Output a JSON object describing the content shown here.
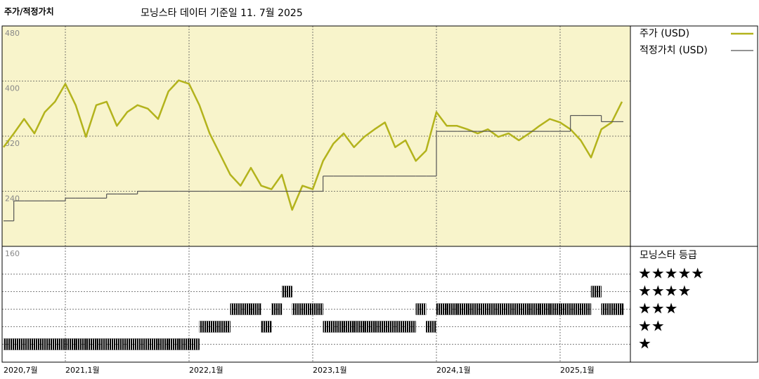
{
  "chart_data": [
    {
      "type": "line",
      "title": "주가/적정가치",
      "subtitle": "모닝스타 데이터 기준일 11. 7월 2025",
      "x": [
        "2020-07",
        "2020-08",
        "2020-09",
        "2020-10",
        "2020-11",
        "2020-12",
        "2021-01",
        "2021-02",
        "2021-03",
        "2021-04",
        "2021-05",
        "2021-06",
        "2021-07",
        "2021-08",
        "2021-09",
        "2021-10",
        "2021-11",
        "2021-12",
        "2022-01",
        "2022-02",
        "2022-03",
        "2022-04",
        "2022-05",
        "2022-06",
        "2022-07",
        "2022-08",
        "2022-09",
        "2022-10",
        "2022-11",
        "2022-12",
        "2023-01",
        "2023-02",
        "2023-03",
        "2023-04",
        "2023-05",
        "2023-06",
        "2023-07",
        "2023-08",
        "2023-09",
        "2023-10",
        "2023-11",
        "2023-12",
        "2024-01",
        "2024-02",
        "2024-03",
        "2024-04",
        "2024-05",
        "2024-06",
        "2024-07",
        "2024-08",
        "2024-09",
        "2024-10",
        "2024-11",
        "2024-12",
        "2025-01",
        "2025-02",
        "2025-03",
        "2025-04",
        "2025-05",
        "2025-06",
        "2025-07"
      ],
      "series": [
        {
          "name": "주가 (USD)",
          "color": "#b3b31c",
          "values": [
            304,
            324,
            345,
            324,
            355,
            370,
            396,
            365,
            319,
            365,
            370,
            335,
            355,
            365,
            360,
            345,
            385,
            401,
            396,
            365,
            324,
            294,
            264,
            248,
            274,
            248,
            243,
            264,
            213,
            248,
            243,
            284,
            309,
            324,
            304,
            319,
            330,
            340,
            304,
            314,
            284,
            299,
            355,
            335,
            335,
            330,
            324,
            330,
            319,
            324,
            314,
            324,
            335,
            345,
            340,
            330,
            314,
            289,
            330,
            340,
            370
          ]
        },
        {
          "name": "적정가치 (USD)",
          "color": "#555555",
          "step": true,
          "values": [
            197,
            226,
            226,
            226,
            226,
            226,
            230,
            230,
            230,
            230,
            236,
            236,
            236,
            240,
            240,
            240,
            240,
            240,
            240,
            240,
            240,
            240,
            240,
            240,
            240,
            240,
            240,
            240,
            240,
            240,
            240,
            262,
            262,
            262,
            262,
            262,
            262,
            262,
            262,
            262,
            262,
            262,
            327,
            327,
            327,
            327,
            327,
            327,
            327,
            327,
            327,
            327,
            327,
            327,
            327,
            350,
            350,
            350,
            341,
            341,
            341
          ]
        }
      ],
      "ylim": [
        160,
        480
      ],
      "yticks": [
        160,
        240,
        320,
        400,
        480
      ],
      "xticks": [
        {
          "value": "2020-07",
          "label": "2020,7월"
        },
        {
          "value": "2021-01",
          "label": "2021,1월"
        },
        {
          "value": "2022-01",
          "label": "2022,1월"
        },
        {
          "value": "2023-01",
          "label": "2023,1월"
        },
        {
          "value": "2024-01",
          "label": "2024,1월"
        },
        {
          "value": "2025-01",
          "label": "2025,1월"
        }
      ],
      "grid": true,
      "legend": "right"
    },
    {
      "type": "strip",
      "title": "모닝스타 등급",
      "color": "#000000",
      "values": [
        1,
        1,
        1,
        1,
        1,
        1,
        1,
        1,
        1,
        1,
        1,
        1,
        1,
        1,
        1,
        1,
        1,
        1,
        1,
        2,
        2,
        2,
        3,
        3,
        3,
        2,
        3,
        4,
        3,
        3,
        3,
        2,
        2,
        2,
        2,
        2,
        2,
        2,
        2,
        2,
        3,
        2,
        3,
        3,
        3,
        3,
        3,
        3,
        3,
        3,
        3,
        3,
        3,
        3,
        3,
        3,
        3,
        4,
        3,
        3,
        3
      ],
      "ylim": [
        0.5,
        5.5
      ],
      "yticks": [
        {
          "value": 5,
          "label": "★★★★★"
        },
        {
          "value": 4,
          "label": "★★★★"
        },
        {
          "value": 3,
          "label": "★★★"
        },
        {
          "value": 2,
          "label": "★★"
        },
        {
          "value": 1,
          "label": "★"
        }
      ]
    }
  ]
}
